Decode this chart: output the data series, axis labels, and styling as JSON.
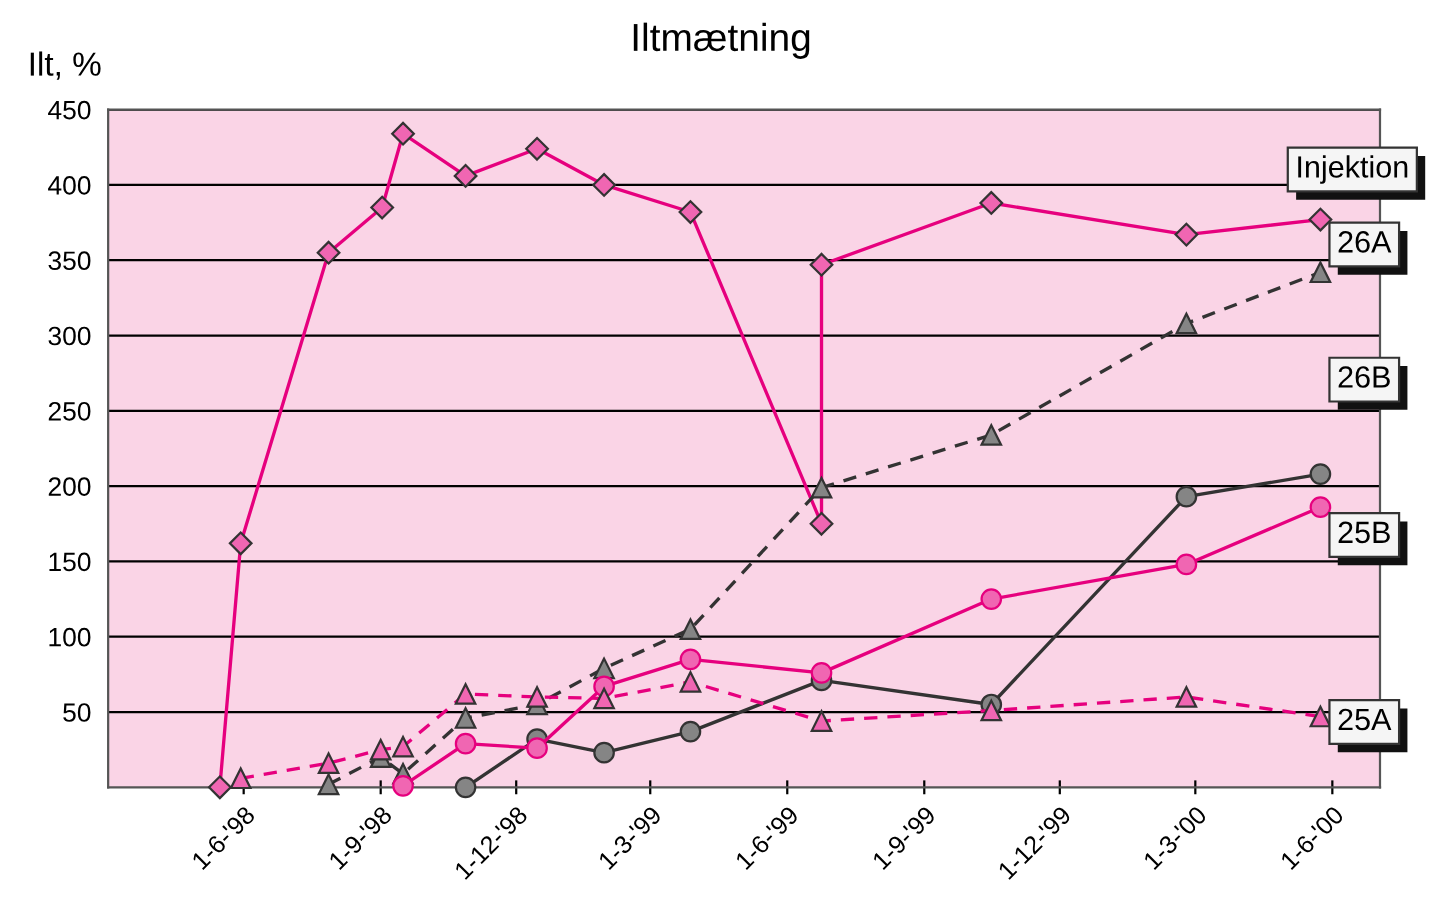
{
  "chart_data": {
    "type": "line",
    "title": "Iltmætning",
    "ylabel": "Ilt, %",
    "xlim": [
      "1998-03-02",
      "2000-07-03"
    ],
    "ylim": [
      0,
      450
    ],
    "xticks": [
      {
        "value": "1998-06-01",
        "label": "1-6-'98"
      },
      {
        "value": "1998-09-01",
        "label": "1-9-'98"
      },
      {
        "value": "1998-12-01",
        "label": "1-12-'98"
      },
      {
        "value": "1999-03-01",
        "label": "1-3-'99"
      },
      {
        "value": "1999-06-01",
        "label": "1-6-'99"
      },
      {
        "value": "1999-09-01",
        "label": "1-9-'99"
      },
      {
        "value": "1999-12-01",
        "label": "1-12-'99"
      },
      {
        "value": "2000-03-01",
        "label": "1-3-'00"
      },
      {
        "value": "2000-06-01",
        "label": "1-6-'00"
      }
    ],
    "yticks": [
      50,
      100,
      150,
      200,
      250,
      300,
      350,
      400,
      450
    ],
    "grid": "y",
    "legend": false,
    "series": [
      {
        "name": "Injektion",
        "color": "#e6007e",
        "marker": "diamond",
        "line_style": "solid",
        "x": [
          "1998-05-16",
          "1998-05-30",
          "1998-07-28",
          "1998-09-02",
          "1998-09-16",
          "1998-10-28",
          "1998-12-15",
          "1999-01-29",
          "1999-03-28",
          "1999-06-24",
          "1999-06-24",
          "1999-10-16",
          "2000-02-24",
          "2000-05-24"
        ],
        "values": [
          0,
          162,
          355,
          385,
          434,
          406,
          424,
          400,
          382,
          175,
          347,
          388,
          367,
          377
        ]
      },
      {
        "name": "26A",
        "color": "#333333",
        "marker": "triangle",
        "line_style": "dashed",
        "x": [
          "1998-07-28",
          "1998-09-01",
          "1998-09-16",
          "1998-10-28",
          "1998-12-15",
          "1999-01-29",
          "1999-03-28",
          "1999-06-24",
          "1999-10-16",
          "2000-02-24",
          "2000-05-24"
        ],
        "values": [
          2,
          20,
          9,
          46,
          55,
          79,
          105,
          199,
          234,
          308,
          342
        ]
      },
      {
        "name": "26B",
        "color": "#333333",
        "marker": "circle",
        "line_style": "solid",
        "x": [
          "1998-10-28",
          "1998-12-15",
          "1999-01-29",
          "1999-03-28",
          "1999-06-24",
          "1999-10-16",
          "2000-02-24",
          "2000-05-24"
        ],
        "values": [
          0,
          32,
          23,
          37,
          71,
          55,
          193,
          208
        ]
      },
      {
        "name": "25B",
        "color": "#e6007e",
        "marker": "circle",
        "line_style": "solid",
        "x": [
          "1998-09-16",
          "1998-10-28",
          "1998-12-15",
          "1999-01-29",
          "1999-03-28",
          "1999-06-24",
          "1999-10-16",
          "2000-02-24",
          "2000-05-24"
        ],
        "values": [
          1,
          29,
          26,
          67,
          85,
          76,
          125,
          148,
          186
        ]
      },
      {
        "name": "25A",
        "color": "#e6007e",
        "marker": "triangle",
        "line_style": "dashed",
        "x": [
          "1998-05-30",
          "1998-07-28",
          "1998-09-01",
          "1998-09-16",
          "1998-10-28",
          "1998-12-15",
          "1999-01-29",
          "1999-03-28",
          "1999-06-24",
          "1999-10-16",
          "2000-02-24",
          "2000-05-24"
        ],
        "values": [
          6,
          16,
          25,
          27,
          62,
          60,
          59,
          70,
          44,
          51,
          60,
          47
        ]
      }
    ]
  }
}
